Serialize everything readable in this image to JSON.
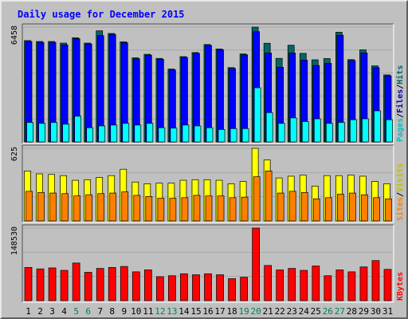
{
  "chart_data": {
    "type": "bar",
    "title": "Daily usage for December 2015",
    "categories": [
      "1",
      "2",
      "3",
      "4",
      "5",
      "6",
      "7",
      "8",
      "9",
      "10",
      "11",
      "12",
      "13",
      "14",
      "15",
      "16",
      "17",
      "18",
      "19",
      "20",
      "21",
      "22",
      "23",
      "24",
      "25",
      "26",
      "27",
      "28",
      "29",
      "30",
      "31"
    ],
    "weekend_days": [
      "5",
      "6",
      "12",
      "13",
      "19",
      "20",
      "26",
      "27"
    ],
    "panels": [
      {
        "id": "hits",
        "ymax": 6458,
        "ymax_label": "6458",
        "series": [
          {
            "name": "Hits",
            "color": "#006666",
            "values": [
              5700,
              5650,
              5650,
              5560,
              5860,
              5560,
              6250,
              6100,
              5630,
              4730,
              4930,
              4700,
              4100,
              4800,
              5030,
              5480,
              5230,
              4180,
              4950,
              6458,
              5550,
              4700,
              5440,
              4980,
              4620,
              4690,
              6170,
              4630,
              5180,
              4280,
              3770
            ]
          },
          {
            "name": "Files",
            "color": "#0000ff",
            "values": [
              5650,
              5600,
              5600,
              5460,
              5810,
              5510,
              5980,
              6050,
              5580,
              4680,
              4880,
              4650,
              4050,
              4750,
              4980,
              5430,
              5180,
              4130,
              4900,
              6200,
              5000,
              4200,
              5000,
              4600,
              4300,
              4420,
              6000,
              4580,
              5000,
              4180,
              3720
            ]
          },
          {
            "name": "Pages",
            "color": "#00ffff",
            "values": [
              1100,
              1050,
              1100,
              1000,
              1450,
              800,
              900,
              950,
              1050,
              950,
              1050,
              800,
              780,
              950,
              900,
              800,
              700,
              750,
              750,
              3050,
              1650,
              1050,
              1350,
              1150,
              1300,
              1050,
              1100,
              1250,
              1300,
              1750,
              1250
            ]
          }
        ]
      },
      {
        "id": "visits",
        "ymax": 625,
        "ymax_label": "625",
        "series": [
          {
            "name": "Visits",
            "color": "#ffff00",
            "values": [
              430,
              405,
              400,
              390,
              350,
              355,
              375,
              390,
              445,
              335,
              320,
              325,
              325,
              350,
              355,
              355,
              350,
              320,
              340,
              625,
              525,
              370,
              385,
              395,
              300,
              390,
              390,
              395,
              385,
              340,
              320
            ]
          },
          {
            "name": "Sites",
            "color": "#ff8000",
            "values": [
              255,
              245,
              240,
              235,
              215,
              225,
              235,
              240,
              250,
              220,
              210,
              195,
              195,
              200,
              220,
              215,
              215,
              200,
              205,
              380,
              430,
              240,
              255,
              245,
              190,
              200,
              230,
              240,
              225,
              200,
              190
            ]
          }
        ]
      },
      {
        "id": "kbytes",
        "ymax": 148530,
        "ymax_label": "148530",
        "series": [
          {
            "name": "KBytes",
            "color": "#ff0000",
            "values": [
              68000,
              65000,
              67000,
              62000,
              77000,
              58000,
              66000,
              68000,
              70000,
              59000,
              63000,
              49000,
              51000,
              55000,
              53000,
              55000,
              53000,
              45000,
              48000,
              148530,
              72000,
              63000,
              66000,
              62000,
              71000,
              51000,
              63000,
              59000,
              69000,
              82000,
              64000
            ]
          }
        ]
      }
    ]
  },
  "legends": {
    "hits_panel": [
      {
        "text": "Pages",
        "color": "#00c0c0"
      },
      {
        "text": "/",
        "color": "#000000"
      },
      {
        "text": "Files",
        "color": "#0000c0"
      },
      {
        "text": "/",
        "color": "#000000"
      },
      {
        "text": "Hits",
        "color": "#006666"
      }
    ],
    "visits_panel": [
      {
        "text": "Sites",
        "color": "#ff8000"
      },
      {
        "text": "/",
        "color": "#000000"
      },
      {
        "text": "Visits",
        "color": "#c0c000"
      }
    ],
    "kbytes_panel": [
      {
        "text": "KBytes",
        "color": "#ff0000"
      }
    ]
  },
  "colors": {
    "title": "#0000ff",
    "weekday_label": "#000000",
    "weekend_label": "#00805c"
  }
}
